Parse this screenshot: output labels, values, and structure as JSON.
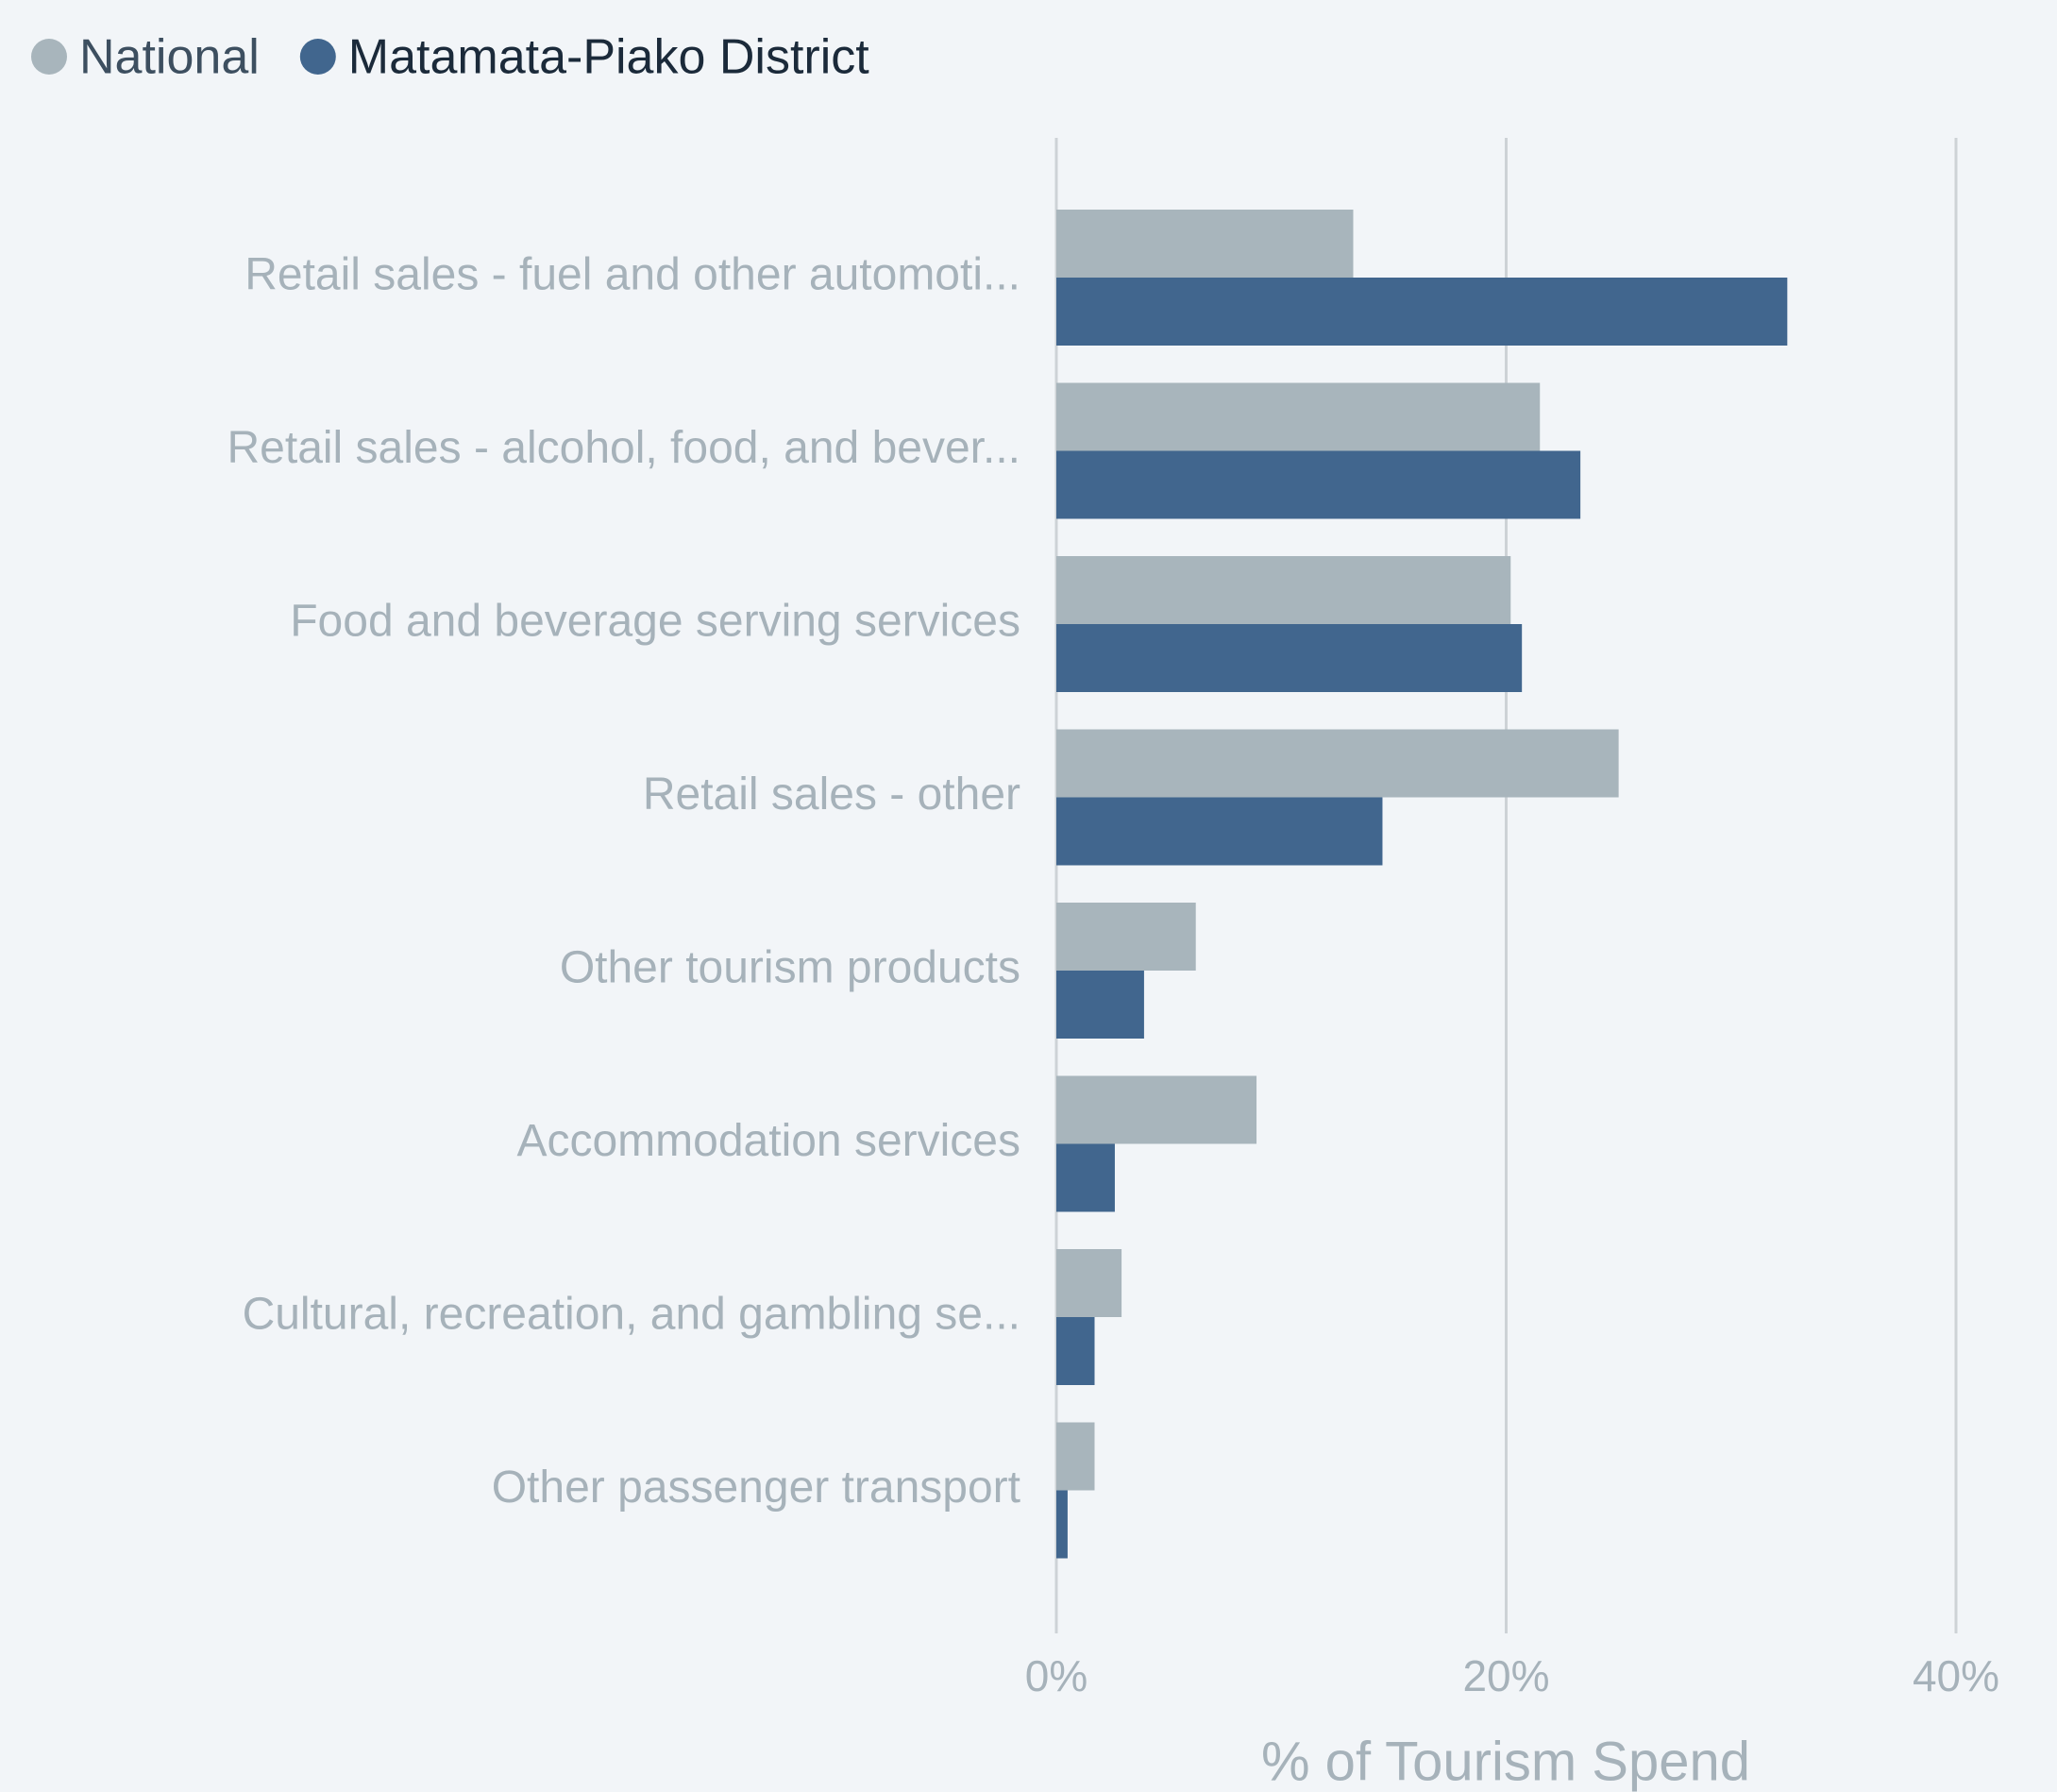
{
  "chart_data": {
    "type": "bar",
    "orientation": "horizontal",
    "categories": [
      "Retail sales - fuel and other automoti...",
      "Retail sales - alcohol, food, and bever...",
      "Food and beverage serving services",
      "Retail sales - other",
      "Other tourism products",
      "Accommodation services",
      "Cultural, recreation, and gambling se...",
      "Other passenger transport"
    ],
    "series": [
      {
        "name": "National",
        "color": "#a8b5bc",
        "values": [
          13.2,
          21.5,
          20.2,
          25.0,
          6.2,
          8.9,
          2.9,
          1.7
        ]
      },
      {
        "name": "Matamata-Piako District",
        "color": "#41668e",
        "values": [
          32.5,
          23.3,
          20.7,
          14.5,
          3.9,
          2.6,
          1.7,
          0.5
        ]
      }
    ],
    "xlim": [
      0,
      40
    ],
    "xticks": [
      {
        "value": 0,
        "label": "0%"
      },
      {
        "value": 20,
        "label": "20%"
      },
      {
        "value": 40,
        "label": "40%"
      }
    ],
    "xlabel": "% of Tourism Spend",
    "grid": true,
    "legend": "top-left"
  }
}
